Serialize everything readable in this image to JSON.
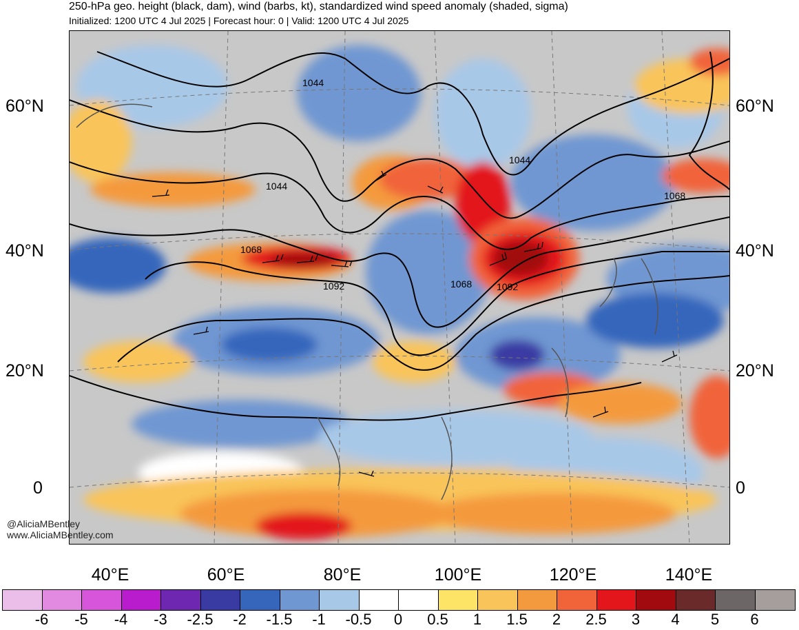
{
  "header": {
    "title": "250-hPa geo. height (black, dam), wind (barbs, kt), standardized wind speed anomaly (shaded, sigma)",
    "subtitle": "Initialized: 1200 UTC 4 Jul 2025 | Forecast hour: 0 | Valid: 1200 UTC 4 Jul 2025"
  },
  "map": {
    "latitude_labels": [
      "60°N",
      "40°N",
      "20°N",
      "0"
    ],
    "longitude_labels": [
      "40°E",
      "60°E",
      "80°E",
      "100°E",
      "120°E",
      "140°E"
    ],
    "contour_labels": [
      "1044",
      "1044",
      "1044",
      "1068",
      "1092",
      "1068",
      "1092",
      "1068"
    ],
    "watermark": [
      "@AliciaMBentley",
      "www.AliciaMBentley.com"
    ]
  },
  "colorbar": {
    "labels": [
      "-6",
      "-5",
      "-4",
      "-3",
      "-2.5",
      "-2",
      "-1.5",
      "-1",
      "-0.5",
      "0",
      "0.5",
      "1",
      "1.5",
      "2",
      "2.5",
      "3",
      "4",
      "5",
      "6"
    ],
    "colors": [
      "#ebbde9",
      "#e28ae2",
      "#d755db",
      "#b81ccd",
      "#6d27b0",
      "#3a3aa3",
      "#3566bc",
      "#6f97d2",
      "#a8c8e8",
      "#ffffff",
      "#ffffff",
      "#fde466",
      "#f9c45a",
      "#f49a3e",
      "#f1643a",
      "#e3161b",
      "#a10a0f",
      "#6a2a2a",
      "#6d6666",
      "#a69d9d"
    ]
  }
}
